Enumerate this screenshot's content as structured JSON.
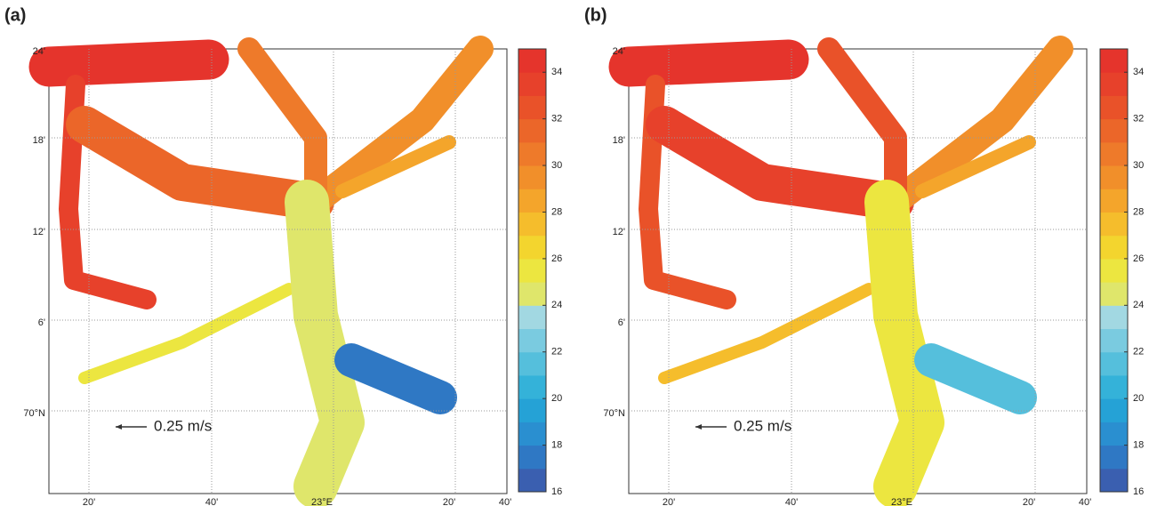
{
  "panels": [
    {
      "label": "(a)",
      "x_ticks": [
        "20'",
        "40'",
        "23°E",
        "20'",
        "40'"
      ],
      "y_ticks": [
        "24'",
        "18'",
        "12'",
        "6'",
        "70°N"
      ],
      "scale_label": "0.25 m/s",
      "colorbar": {
        "lim": [
          16,
          35
        ],
        "ticks": [
          16,
          18,
          20,
          22,
          24,
          26,
          28,
          30,
          32,
          34
        ],
        "colors": [
          "#3a5fb0",
          "#2f78c4",
          "#2a8fd0",
          "#25a2d6",
          "#34b2d9",
          "#55bfdc",
          "#7acbe0",
          "#a2d8e2",
          "#dfe66b",
          "#ece640",
          "#f3d52e",
          "#f5bd2c",
          "#f4a52b",
          "#f18f2a",
          "#ee7a2a",
          "#eb6629",
          "#e95229",
          "#e7412b",
          "#e5342c"
        ]
      }
    },
    {
      "label": "(b)",
      "x_ticks": [
        "20'",
        "40'",
        "23°E",
        "20'",
        "40'"
      ],
      "y_ticks": [
        "24'",
        "18'",
        "12'",
        "6'",
        "70°N"
      ],
      "scale_label": "0.25 m/s",
      "colorbar": {
        "lim": [
          16,
          35
        ],
        "ticks": [
          16,
          18,
          20,
          22,
          24,
          26,
          28,
          30,
          32,
          34
        ],
        "colors": [
          "#3a5fb0",
          "#2f78c4",
          "#2a8fd0",
          "#25a2d6",
          "#34b2d9",
          "#55bfdc",
          "#7acbe0",
          "#a2d8e2",
          "#dfe66b",
          "#ece640",
          "#f3d52e",
          "#f5bd2c",
          "#f4a52b",
          "#f18f2a",
          "#ee7a2a",
          "#eb6629",
          "#e95229",
          "#e7412b",
          "#e5342c"
        ]
      }
    }
  ]
}
